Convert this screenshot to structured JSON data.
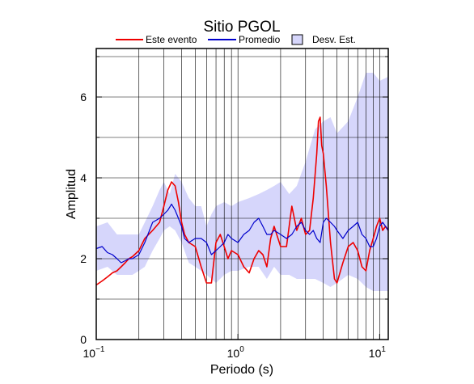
{
  "chart_data": {
    "type": "line",
    "title": "Sitio PGOL",
    "xlabel": "Periodo (s)",
    "ylabel": "Amplitud",
    "x_scale": "log",
    "xlim": [
      0.1,
      11.5
    ],
    "ylim": [
      0,
      7.2
    ],
    "grid": true,
    "legend_position": "top",
    "x_ticks": [
      {
        "value": 0.1,
        "base": "10",
        "exp": "−1"
      },
      {
        "value": 1,
        "base": "10",
        "exp": "0"
      },
      {
        "value": 10,
        "base": "10",
        "exp": "1"
      }
    ],
    "y_ticks": [
      {
        "value": 0,
        "label": "0"
      },
      {
        "value": 2,
        "label": "2"
      },
      {
        "value": 4,
        "label": "4"
      },
      {
        "value": 6,
        "label": "6"
      }
    ],
    "legend": {
      "event_label": "Este evento",
      "mean_label": "Promedio",
      "std_label": "Desv. Est."
    },
    "colors": {
      "event": "#ee0000",
      "mean": "#0000cc",
      "std_band": "#d6d6fb",
      "std_border": "#000000",
      "grid": "#000000"
    },
    "series": [
      {
        "name": "Este evento",
        "x": [
          0.1,
          0.11,
          0.12,
          0.13,
          0.14,
          0.15,
          0.16,
          0.17,
          0.18,
          0.2,
          0.22,
          0.25,
          0.28,
          0.3,
          0.32,
          0.34,
          0.36,
          0.38,
          0.4,
          0.42,
          0.45,
          0.5,
          0.55,
          0.6,
          0.65,
          0.7,
          0.75,
          0.8,
          0.85,
          0.9,
          1.0,
          1.1,
          1.2,
          1.3,
          1.4,
          1.5,
          1.6,
          1.7,
          1.8,
          2.0,
          2.2,
          2.4,
          2.6,
          2.8,
          3.0,
          3.2,
          3.4,
          3.6,
          3.7,
          3.8,
          3.9,
          4.0,
          4.2,
          4.5,
          4.8,
          5.0,
          5.5,
          6.0,
          6.5,
          7.0,
          7.5,
          8.0,
          8.5,
          9.0,
          9.5,
          10.0,
          10.5,
          11.0,
          11.5
        ],
        "values": [
          1.35,
          1.45,
          1.55,
          1.65,
          1.7,
          1.8,
          1.9,
          2.0,
          2.05,
          2.2,
          2.5,
          2.7,
          2.9,
          3.3,
          3.7,
          3.9,
          3.8,
          3.4,
          2.9,
          2.6,
          2.4,
          2.3,
          1.8,
          1.4,
          1.4,
          2.4,
          2.6,
          2.3,
          2.0,
          2.2,
          2.1,
          1.8,
          1.65,
          2.0,
          2.2,
          2.1,
          1.8,
          2.5,
          2.8,
          2.3,
          2.3,
          3.3,
          2.7,
          3.0,
          2.6,
          2.7,
          3.5,
          4.6,
          5.4,
          5.5,
          4.8,
          4.6,
          3.8,
          2.4,
          1.5,
          1.4,
          1.9,
          2.3,
          2.4,
          2.2,
          1.8,
          1.7,
          2.2,
          2.5,
          2.8,
          3.0,
          2.7,
          2.8,
          2.7
        ]
      },
      {
        "name": "Promedio",
        "x": [
          0.1,
          0.11,
          0.12,
          0.13,
          0.14,
          0.15,
          0.16,
          0.17,
          0.18,
          0.2,
          0.22,
          0.25,
          0.28,
          0.3,
          0.32,
          0.34,
          0.36,
          0.38,
          0.4,
          0.42,
          0.45,
          0.5,
          0.55,
          0.6,
          0.65,
          0.7,
          0.75,
          0.8,
          0.85,
          0.9,
          1.0,
          1.1,
          1.2,
          1.3,
          1.4,
          1.5,
          1.6,
          1.7,
          1.8,
          2.0,
          2.2,
          2.4,
          2.6,
          2.8,
          3.0,
          3.2,
          3.4,
          3.6,
          3.8,
          4.0,
          4.2,
          4.5,
          4.8,
          5.0,
          5.5,
          6.0,
          6.5,
          7.0,
          7.5,
          8.0,
          8.5,
          9.0,
          9.5,
          10.0,
          10.5,
          11.0,
          11.5
        ],
        "values": [
          2.25,
          2.3,
          2.15,
          2.1,
          2.0,
          1.9,
          1.95,
          2.0,
          2.0,
          2.1,
          2.4,
          2.9,
          3.0,
          3.1,
          3.2,
          3.35,
          3.2,
          3.0,
          2.8,
          2.5,
          2.4,
          2.5,
          2.5,
          2.4,
          2.1,
          2.2,
          2.3,
          2.4,
          2.6,
          2.5,
          2.4,
          2.6,
          2.7,
          2.9,
          3.0,
          2.8,
          2.6,
          2.6,
          2.7,
          2.6,
          2.5,
          2.6,
          2.8,
          2.9,
          2.7,
          2.6,
          2.7,
          2.5,
          2.4,
          2.9,
          3.0,
          2.9,
          2.8,
          2.7,
          2.5,
          2.7,
          2.8,
          2.9,
          2.6,
          2.5,
          2.3,
          2.3,
          2.5,
          2.8,
          2.9,
          2.8,
          2.7
        ]
      }
    ],
    "std_band": {
      "name": "Desv. Est.",
      "x": [
        0.1,
        0.12,
        0.14,
        0.16,
        0.18,
        0.2,
        0.22,
        0.25,
        0.28,
        0.3,
        0.33,
        0.36,
        0.4,
        0.45,
        0.5,
        0.55,
        0.6,
        0.65,
        0.7,
        0.8,
        0.9,
        1.0,
        1.2,
        1.4,
        1.6,
        1.8,
        2.0,
        2.3,
        2.6,
        3.0,
        3.5,
        4.0,
        4.5,
        5.0,
        6.0,
        7.0,
        8.0,
        9.0,
        10.0,
        11.5
      ],
      "upper": [
        2.8,
        2.9,
        2.6,
        2.6,
        2.6,
        2.6,
        2.9,
        3.3,
        3.7,
        3.9,
        3.6,
        4.1,
        3.9,
        3.5,
        3.3,
        3.3,
        2.8,
        3.1,
        3.3,
        3.4,
        3.3,
        3.4,
        3.5,
        3.6,
        3.7,
        3.8,
        3.9,
        3.6,
        3.8,
        4.4,
        5.2,
        5.4,
        5.5,
        5.1,
        5.4,
        6.0,
        6.6,
        6.6,
        6.4,
        6.5
      ],
      "lower": [
        1.7,
        1.8,
        1.6,
        1.6,
        1.6,
        1.7,
        1.8,
        2.2,
        2.5,
        2.7,
        2.8,
        2.7,
        2.4,
        1.9,
        1.8,
        1.7,
        1.6,
        1.5,
        1.4,
        1.6,
        1.7,
        1.7,
        1.8,
        1.8,
        1.5,
        1.8,
        1.6,
        1.6,
        1.5,
        1.5,
        1.5,
        1.4,
        1.3,
        1.4,
        1.6,
        1.5,
        1.3,
        1.2,
        1.2,
        1.2
      ]
    }
  }
}
